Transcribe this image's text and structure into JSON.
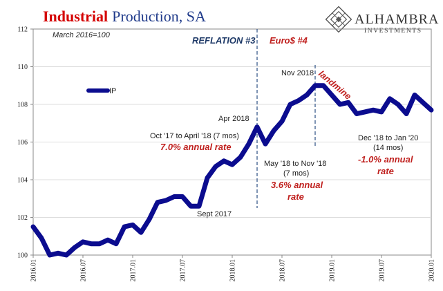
{
  "title_part1": "Industrial",
  "title_part2": "Production, SA",
  "logo": {
    "name": "ALHAMBRA",
    "sub": "INVESTMENTS"
  },
  "colors": {
    "line": "#0b0c8f",
    "title_accent": "#d40000",
    "title_main": "#1f3a8a",
    "annotation_red": "#c0211f",
    "annotation_blue": "#1f3a68",
    "dashed": "#3a5a8c"
  },
  "chart_data": {
    "type": "line",
    "title": "Industrial Production, SA",
    "subtitle": "March 2016=100",
    "x_ticks": [
      "2016.01",
      "2016.07",
      "2017.01",
      "2017.07",
      "2018.01",
      "2018.07",
      "2019.01",
      "2019.07",
      "2020.01"
    ],
    "y_ticks": [
      "100",
      "102",
      "104",
      "106",
      "108",
      "110",
      "112"
    ],
    "ylim": [
      100,
      112
    ],
    "legend": {
      "label": "IP",
      "position": "left"
    },
    "grid": "horizontal",
    "series": [
      {
        "name": "IP",
        "x": [
          "2016-01",
          "2016-02",
          "2016-03",
          "2016-04",
          "2016-05",
          "2016-06",
          "2016-07",
          "2016-08",
          "2016-09",
          "2016-10",
          "2016-11",
          "2016-12",
          "2017-01",
          "2017-02",
          "2017-03",
          "2017-04",
          "2017-05",
          "2017-06",
          "2017-07",
          "2017-08",
          "2017-09",
          "2017-10",
          "2017-11",
          "2017-12",
          "2018-01",
          "2018-02",
          "2018-03",
          "2018-04",
          "2018-05",
          "2018-06",
          "2018-07",
          "2018-08",
          "2018-09",
          "2018-10",
          "2018-11",
          "2018-12",
          "2019-01",
          "2019-02",
          "2019-03",
          "2019-04",
          "2019-05",
          "2019-06",
          "2019-07",
          "2019-08",
          "2019-09",
          "2019-10",
          "2019-11",
          "2019-12",
          "2020-01"
        ],
        "values": [
          101.5,
          100.9,
          100.0,
          100.1,
          100.0,
          100.4,
          100.7,
          100.6,
          100.6,
          100.8,
          100.6,
          101.5,
          101.6,
          101.2,
          101.9,
          102.8,
          102.9,
          103.1,
          103.1,
          102.6,
          102.6,
          104.1,
          104.7,
          105.0,
          104.8,
          105.2,
          105.9,
          106.8,
          105.9,
          106.6,
          107.1,
          108.0,
          108.2,
          108.5,
          109.0,
          109.0,
          108.5,
          108.0,
          108.1,
          107.5,
          107.6,
          107.7,
          107.6,
          108.3,
          108.0,
          107.5,
          108.5,
          108.1,
          107.7
        ]
      }
    ],
    "annotations": {
      "reflation": "REFLATION #3",
      "euro": "Euro$ #4",
      "apr2018": "Apr 2018",
      "nov2018": "Nov 2018",
      "landmine": "landmine",
      "sept2017": "Sept 2017",
      "oct_apr_period": "Oct '17 to April '18 (7 mos)",
      "oct_apr_rate": "7.0% annual rate",
      "may_nov_period_1": "May '18 to Nov '18",
      "may_nov_period_2": "(7 mos)",
      "may_nov_rate_1": "3.6% annual",
      "may_nov_rate_2": "rate",
      "dec_jan_period_1": "Dec '18 to Jan '20",
      "dec_jan_period_2": "(14 mos)",
      "dec_jan_rate_1": "-1.0% annual",
      "dec_jan_rate_2": "rate"
    },
    "reference_lines": [
      "2018-04",
      "2018-11"
    ]
  }
}
